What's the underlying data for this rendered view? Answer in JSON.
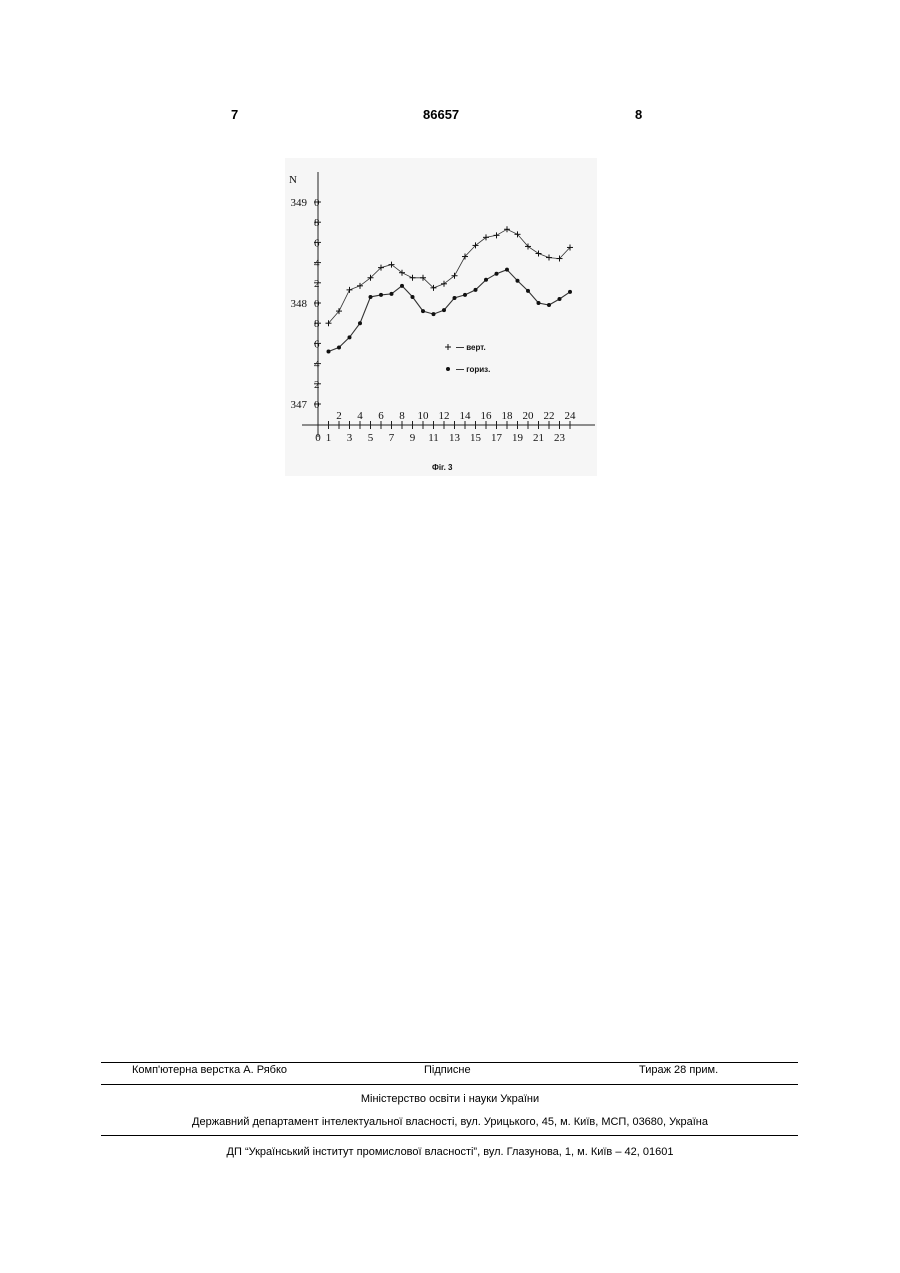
{
  "header": {
    "left_page": "7",
    "patent_number": "86657",
    "right_page": "8"
  },
  "figure": {
    "caption": "Фіг. 3",
    "y_axis_label": "N",
    "y_major_labels": [
      "349",
      "348",
      "347"
    ],
    "y_minor_labels": [
      "0",
      "8",
      "6",
      "4",
      "2",
      "0",
      "8",
      "6",
      "4",
      "2",
      "0"
    ],
    "x_top_labels": [
      "2",
      "4",
      "6",
      "8",
      "10",
      "12",
      "14",
      "16",
      "18",
      "20",
      "22",
      "24"
    ],
    "x_bottom_labels": [
      "0",
      "1",
      "3",
      "5",
      "7",
      "9",
      "11",
      "13",
      "15",
      "17",
      "19",
      "21",
      "23"
    ],
    "legend": [
      {
        "marker": "+",
        "text": "— верт."
      },
      {
        "marker": "•",
        "text": "— гориз."
      }
    ]
  },
  "chart_data": {
    "type": "line",
    "title": "",
    "xlabel": "",
    "ylabel": "N",
    "xlim": [
      0,
      24
    ],
    "ylim": [
      347.0,
      349.0
    ],
    "grid": false,
    "legend_position": "center-right",
    "x": [
      1,
      2,
      3,
      4,
      5,
      6,
      7,
      8,
      9,
      10,
      11,
      12,
      13,
      14,
      15,
      16,
      17,
      18,
      19,
      20,
      21,
      22,
      23,
      24
    ],
    "series": [
      {
        "name": "верт.",
        "marker": "+",
        "values": [
          347.8,
          347.92,
          348.13,
          348.17,
          348.25,
          348.35,
          348.38,
          348.3,
          348.25,
          348.25,
          348.15,
          348.19,
          348.27,
          348.46,
          348.57,
          348.65,
          348.67,
          348.73,
          348.68,
          348.56,
          348.49,
          348.45,
          348.44,
          348.55
        ]
      },
      {
        "name": "гориз.",
        "marker": "•",
        "values": [
          347.52,
          347.56,
          347.66,
          347.8,
          348.06,
          348.08,
          348.09,
          348.17,
          348.06,
          347.92,
          347.89,
          347.93,
          348.05,
          348.08,
          348.13,
          348.23,
          348.29,
          348.33,
          348.22,
          348.12,
          348.0,
          347.98,
          348.04,
          348.11
        ]
      }
    ]
  },
  "footer": {
    "layout": "Комп'ютерна верстка А. Рябко",
    "signed": "Підписне",
    "circulation": "Тираж 28 прим.",
    "ministry": "Міністерство освіти і науки України",
    "department": "Державний департамент інтелектуальної власності, вул. Урицького, 45, м. Київ, МСП, 03680, Україна",
    "institute": "ДП “Український інститут промислової власності”, вул. Глазунова, 1, м. Київ – 42, 01601"
  }
}
